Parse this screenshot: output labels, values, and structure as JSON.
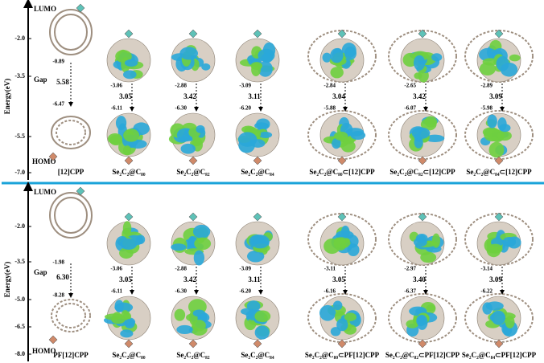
{
  "panels": [
    {
      "axis_label": "Energy(eV)",
      "lumo_label": "LUMO",
      "homo_label": "HOMO",
      "gap_label": "Gap",
      "ticks": [
        "-2.0",
        "-3.5",
        "-5.5",
        "-7.0"
      ],
      "columns": [
        {
          "name": "[12]CPP",
          "lumo": "-0.89",
          "homo": "-6.47",
          "gap": "5.58"
        },
        {
          "name": "Se₂C₂@C₈₀",
          "lumo": "-3.06",
          "homo": "-6.11",
          "gap": "3.05"
        },
        {
          "name": "Se₂C₂@C₈₂",
          "lumo": "-2.88",
          "homo": "-6.30",
          "gap": "3.42"
        },
        {
          "name": "Se₂C₂@C₈₄",
          "lumo": "-3.09",
          "homo": "-6.20",
          "gap": "3.11"
        },
        {
          "name": "Se₂C₂@C₈₀⊂[12]CPP",
          "lumo": "-2.84",
          "homo": "-5.88",
          "gap": "3.04"
        },
        {
          "name": "Se₂C₂@C₈₂⊂[12]CPP",
          "lumo": "-2.65",
          "homo": "-6.07",
          "gap": "3.42"
        },
        {
          "name": "Se₂C₂@C₈₄⊂[12]CPP",
          "lumo": "-2.89",
          "homo": "-5.98",
          "gap": "3.09"
        }
      ]
    },
    {
      "axis_label": "Energy(eV)",
      "lumo_label": "LUMO",
      "homo_label": "HOMO",
      "gap_label": "Gap",
      "ticks": [
        "-2.0",
        "-3.5",
        "-5.0",
        "-6.5",
        "-8.0"
      ],
      "columns": [
        {
          "name": "PF[12]CPP",
          "lumo": "-1.98",
          "homo": "-8.28",
          "gap": "6.30"
        },
        {
          "name": "Se₂C₂@C₈₀",
          "lumo": "-3.06",
          "homo": "-6.11",
          "gap": "3.05"
        },
        {
          "name": "Se₂C₂@C₈₂",
          "lumo": "-2.88",
          "homo": "-6.30",
          "gap": "3.42"
        },
        {
          "name": "Se₂C₂@C₈₄",
          "lumo": "-3.09",
          "homo": "-6.20",
          "gap": "3.11"
        },
        {
          "name": "Se₂C₂@C₈₀⊂PF[12]CPP",
          "lumo": "-3.11",
          "homo": "-6.16",
          "gap": "3.05"
        },
        {
          "name": "Se₂C₂@C₈₂⊂PF[12]CPP",
          "lumo": "-2.97",
          "homo": "-6.37",
          "gap": "3.40"
        },
        {
          "name": "Se₂C₂@C₈₄⊂PF[12]CPP",
          "lumo": "-3.14",
          "homo": "-6.22",
          "gap": "3.09"
        }
      ]
    }
  ]
}
